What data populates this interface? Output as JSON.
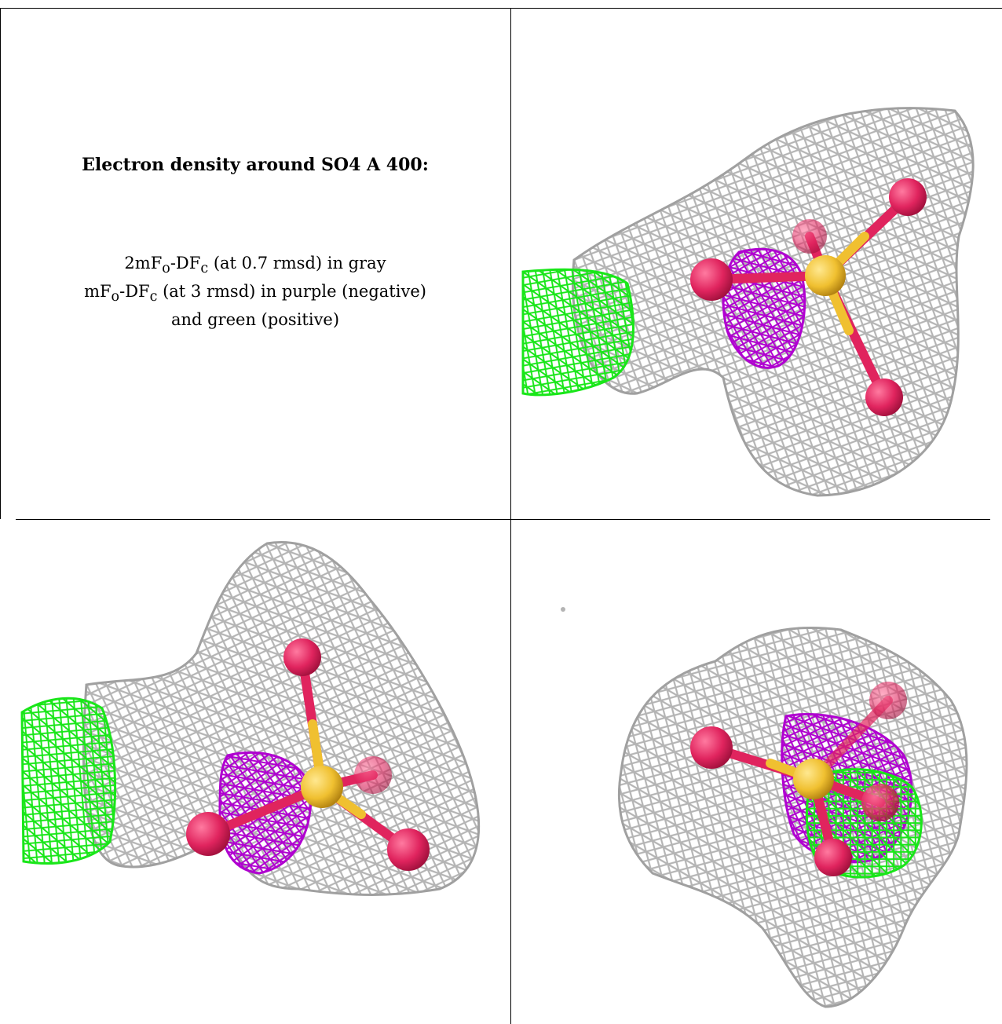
{
  "title": "Electron density around SO4 A 400:",
  "legend": {
    "line1": {
      "a": "2mF",
      "a_sub": "o",
      "b": "-DF",
      "b_sub": "c",
      "rest": " (at 0.7 rmsd) in gray"
    },
    "line2": {
      "a": "mF",
      "a_sub": "o",
      "b": "-DF",
      "b_sub": "c",
      "rest": " (at 3 rmsd) in purple (negative)"
    },
    "line3": "and green (positive)"
  },
  "colors": {
    "mesh_2fofc": "#b4b4b4",
    "mesh_fofc_negative": "#b000d0",
    "mesh_fofc_positive": "#19e619",
    "oxygen": "#e0245e",
    "sulfur": "#f0c030",
    "border": "#000000"
  },
  "views": [
    {
      "name": "view-1",
      "description_icon": "molecule-render-icon"
    },
    {
      "name": "view-2",
      "description_icon": "molecule-render-icon"
    },
    {
      "name": "view-3",
      "description_icon": "molecule-render-icon"
    }
  ]
}
